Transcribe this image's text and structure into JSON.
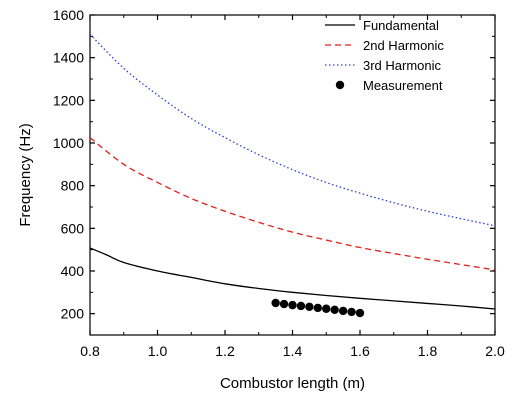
{
  "chart_data": {
    "type": "line",
    "xlabel": "Combustor length (m)",
    "ylabel": "Frequency (Hz)",
    "xlim": [
      0.8,
      2.0
    ],
    "ylim": [
      100,
      1600
    ],
    "xticks": [
      0.8,
      1.0,
      1.2,
      1.4,
      1.6,
      1.8,
      2.0
    ],
    "xtick_labels": [
      "0.8",
      "1.0",
      "1.2",
      "1.4",
      "1.6",
      "1.8",
      "2.0"
    ],
    "yticks": [
      200,
      400,
      600,
      800,
      1000,
      1200,
      1400,
      1600
    ],
    "ytick_labels": [
      "200",
      "400",
      "600",
      "800",
      "1000",
      "1200",
      "1400",
      "1600"
    ],
    "legend_position": "top-right",
    "grid": false,
    "series": [
      {
        "name": "Fundamental",
        "style": "solid",
        "color": "#000000",
        "x": [
          0.8,
          0.85,
          0.9,
          1.0,
          1.1,
          1.2,
          1.3,
          1.4,
          1.5,
          1.6,
          1.7,
          1.8,
          1.9,
          2.0
        ],
        "y": [
          508,
          475,
          440,
          400,
          370,
          340,
          318,
          300,
          285,
          272,
          260,
          248,
          236,
          222
        ]
      },
      {
        "name": "2nd Harmonic",
        "style": "dashed",
        "color": "#e0201b",
        "x": [
          0.8,
          0.9,
          1.0,
          1.1,
          1.2,
          1.3,
          1.4,
          1.5,
          1.6,
          1.7,
          1.8,
          1.9,
          2.0
        ],
        "y": [
          1025,
          900,
          815,
          740,
          680,
          628,
          582,
          545,
          510,
          482,
          455,
          430,
          405
        ]
      },
      {
        "name": "3rd Harmonic",
        "style": "dotted",
        "color": "#2a3fd8",
        "x": [
          0.8,
          0.9,
          1.0,
          1.1,
          1.2,
          1.3,
          1.4,
          1.5,
          1.6,
          1.7,
          1.8,
          1.9,
          2.0
        ],
        "y": [
          1510,
          1350,
          1225,
          1115,
          1025,
          945,
          875,
          815,
          765,
          720,
          680,
          645,
          612
        ]
      },
      {
        "name": "Measurement",
        "style": "marker",
        "color": "#000000",
        "x": [
          1.35,
          1.375,
          1.4,
          1.425,
          1.45,
          1.475,
          1.5,
          1.525,
          1.55,
          1.575,
          1.6
        ],
        "y": [
          250,
          245,
          240,
          236,
          232,
          227,
          223,
          218,
          213,
          208,
          203
        ]
      }
    ]
  }
}
